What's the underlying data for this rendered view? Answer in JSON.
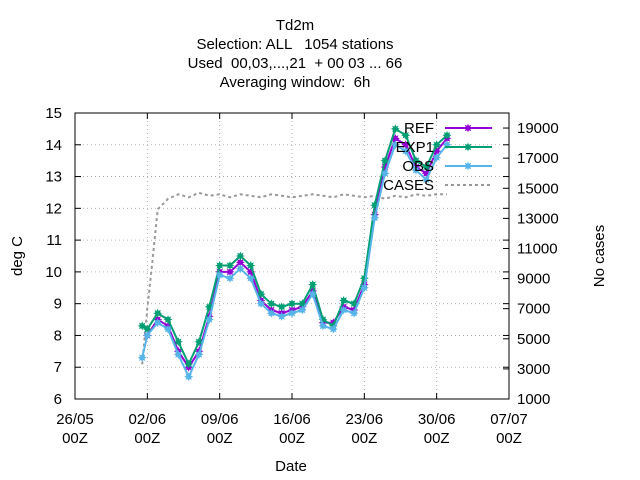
{
  "chart_data": {
    "type": "line",
    "title_lines": [
      "Td2m",
      "Selection: ALL   1054 stations",
      "Used  00,03,...,21  + 00 03 ... 66",
      "Averaging window:  6h"
    ],
    "xlabel": "Date",
    "ylabel": "deg C",
    "y2label": "No cases",
    "x_range": [
      "2023-05-26T00:00",
      "2023-07-07T00:00"
    ],
    "ylim": [
      6,
      15
    ],
    "y2lim": [
      1000,
      20000
    ],
    "x_ticks": [
      {
        "date": "2023-05-26T00:00",
        "label": [
          "26/05",
          "00Z"
        ]
      },
      {
        "date": "2023-06-02T00:00",
        "label": [
          "02/06",
          "00Z"
        ]
      },
      {
        "date": "2023-06-09T00:00",
        "label": [
          "09/06",
          "00Z"
        ]
      },
      {
        "date": "2023-06-16T00:00",
        "label": [
          "16/06",
          "00Z"
        ]
      },
      {
        "date": "2023-06-23T00:00",
        "label": [
          "23/06",
          "00Z"
        ]
      },
      {
        "date": "2023-06-30T00:00",
        "label": [
          "30/06",
          "00Z"
        ]
      },
      {
        "date": "2023-07-07T00:00",
        "label": [
          "07/07",
          "00Z"
        ]
      }
    ],
    "y_ticks": [
      6,
      7,
      8,
      9,
      10,
      11,
      12,
      13,
      14,
      15
    ],
    "y2_ticks": [
      1000,
      3000,
      5000,
      7000,
      9000,
      11000,
      13000,
      15000,
      17000,
      19000
    ],
    "grid": true,
    "legend_position": "top-right",
    "series": [
      {
        "name": "REF",
        "color": "#9400d3",
        "axis": "y",
        "x": [
          "2023-06-02T00:00",
          "2023-06-03T00:00",
          "2023-06-04T00:00",
          "2023-06-05T00:00",
          "2023-06-06T00:00",
          "2023-06-07T00:00",
          "2023-06-08T00:00",
          "2023-06-09T00:00",
          "2023-06-10T00:00",
          "2023-06-11T00:00",
          "2023-06-12T00:00",
          "2023-06-13T00:00",
          "2023-06-14T00:00",
          "2023-06-15T00:00",
          "2023-06-16T00:00",
          "2023-06-17T00:00",
          "2023-06-18T00:00",
          "2023-06-19T00:00",
          "2023-06-20T00:00",
          "2023-06-21T00:00",
          "2023-06-22T00:00",
          "2023-06-23T00:00",
          "2023-06-24T00:00",
          "2023-06-25T00:00",
          "2023-06-26T00:00",
          "2023-06-27T00:00",
          "2023-06-28T00:00",
          "2023-06-29T00:00",
          "2023-06-30T00:00",
          "2023-07-01T00:00"
        ],
        "values": [
          8.0,
          8.5,
          8.3,
          7.5,
          7.0,
          7.5,
          8.6,
          10.0,
          10.0,
          10.3,
          10.0,
          9.1,
          8.8,
          8.7,
          8.8,
          8.9,
          9.4,
          8.4,
          8.4,
          8.9,
          8.8,
          9.6,
          11.8,
          13.3,
          14.2,
          14.0,
          13.3,
          13.1,
          13.8,
          14.2
        ]
      },
      {
        "name": "EXP1",
        "color": "#009e73",
        "axis": "y",
        "x": [
          "2023-06-01T12:00",
          "2023-06-02T00:00",
          "2023-06-03T00:00",
          "2023-06-04T00:00",
          "2023-06-05T00:00",
          "2023-06-06T00:00",
          "2023-06-07T00:00",
          "2023-06-08T00:00",
          "2023-06-09T00:00",
          "2023-06-10T00:00",
          "2023-06-11T00:00",
          "2023-06-12T00:00",
          "2023-06-13T00:00",
          "2023-06-14T00:00",
          "2023-06-15T00:00",
          "2023-06-16T00:00",
          "2023-06-17T00:00",
          "2023-06-18T00:00",
          "2023-06-19T00:00",
          "2023-06-20T00:00",
          "2023-06-21T00:00",
          "2023-06-22T00:00",
          "2023-06-23T00:00",
          "2023-06-24T00:00",
          "2023-06-25T00:00",
          "2023-06-26T00:00",
          "2023-06-27T00:00",
          "2023-06-28T00:00",
          "2023-06-29T00:00",
          "2023-06-30T00:00",
          "2023-07-01T00:00"
        ],
        "values": [
          8.3,
          8.2,
          8.7,
          8.5,
          7.8,
          7.1,
          7.8,
          8.9,
          10.2,
          10.2,
          10.5,
          10.2,
          9.3,
          9.0,
          8.9,
          9.0,
          9.0,
          9.6,
          8.5,
          8.3,
          9.1,
          9.0,
          9.8,
          12.1,
          13.5,
          14.5,
          14.3,
          13.5,
          13.3,
          14.0,
          14.3
        ]
      },
      {
        "name": "OBS",
        "color": "#56b4e9",
        "axis": "y",
        "x": [
          "2023-06-01T12:00",
          "2023-06-02T00:00",
          "2023-06-03T00:00",
          "2023-06-04T00:00",
          "2023-06-05T00:00",
          "2023-06-06T00:00",
          "2023-06-07T00:00",
          "2023-06-08T00:00",
          "2023-06-09T00:00",
          "2023-06-10T00:00",
          "2023-06-11T00:00",
          "2023-06-12T00:00",
          "2023-06-13T00:00",
          "2023-06-14T00:00",
          "2023-06-15T00:00",
          "2023-06-16T00:00",
          "2023-06-17T00:00",
          "2023-06-18T00:00",
          "2023-06-19T00:00",
          "2023-06-20T00:00",
          "2023-06-21T00:00",
          "2023-06-22T00:00",
          "2023-06-23T00:00",
          "2023-06-24T00:00",
          "2023-06-25T00:00",
          "2023-06-26T00:00",
          "2023-06-27T00:00",
          "2023-06-28T00:00",
          "2023-06-29T00:00",
          "2023-06-30T00:00",
          "2023-07-01T00:00"
        ],
        "values": [
          7.3,
          8.0,
          8.4,
          8.2,
          7.4,
          6.7,
          7.4,
          8.5,
          9.9,
          9.8,
          10.1,
          9.8,
          9.0,
          8.7,
          8.6,
          8.7,
          8.8,
          9.3,
          8.3,
          8.2,
          8.8,
          8.7,
          9.5,
          11.7,
          13.1,
          14.0,
          13.8,
          13.2,
          12.9,
          13.6,
          14.0
        ]
      },
      {
        "name": "CASES",
        "color": "#999999",
        "axis": "y2",
        "x": [
          "2023-06-01T12:00",
          "2023-06-02T00:00",
          "2023-06-02T12:00",
          "2023-06-03T00:00",
          "2023-06-04T00:00",
          "2023-06-05T00:00",
          "2023-06-06T00:00",
          "2023-06-07T00:00",
          "2023-06-08T00:00",
          "2023-06-09T00:00",
          "2023-06-10T00:00",
          "2023-06-11T00:00",
          "2023-06-12T00:00",
          "2023-06-13T00:00",
          "2023-06-14T00:00",
          "2023-06-15T00:00",
          "2023-06-16T00:00",
          "2023-06-17T00:00",
          "2023-06-18T00:00",
          "2023-06-19T00:00",
          "2023-06-20T00:00",
          "2023-06-21T00:00",
          "2023-06-22T00:00",
          "2023-06-23T00:00",
          "2023-06-24T00:00",
          "2023-06-25T00:00",
          "2023-06-26T00:00",
          "2023-06-27T00:00",
          "2023-06-28T00:00",
          "2023-06-29T00:00",
          "2023-06-30T00:00",
          "2023-07-01T00:00"
        ],
        "values": [
          3300,
          7000,
          10200,
          13600,
          14300,
          14600,
          14400,
          14700,
          14500,
          14600,
          14400,
          14600,
          14500,
          14400,
          14600,
          14500,
          14400,
          14500,
          14600,
          14500,
          14400,
          14600,
          14500,
          14400,
          14500,
          14300,
          14500,
          14400,
          14600,
          14500,
          14600,
          14600
        ]
      }
    ]
  }
}
